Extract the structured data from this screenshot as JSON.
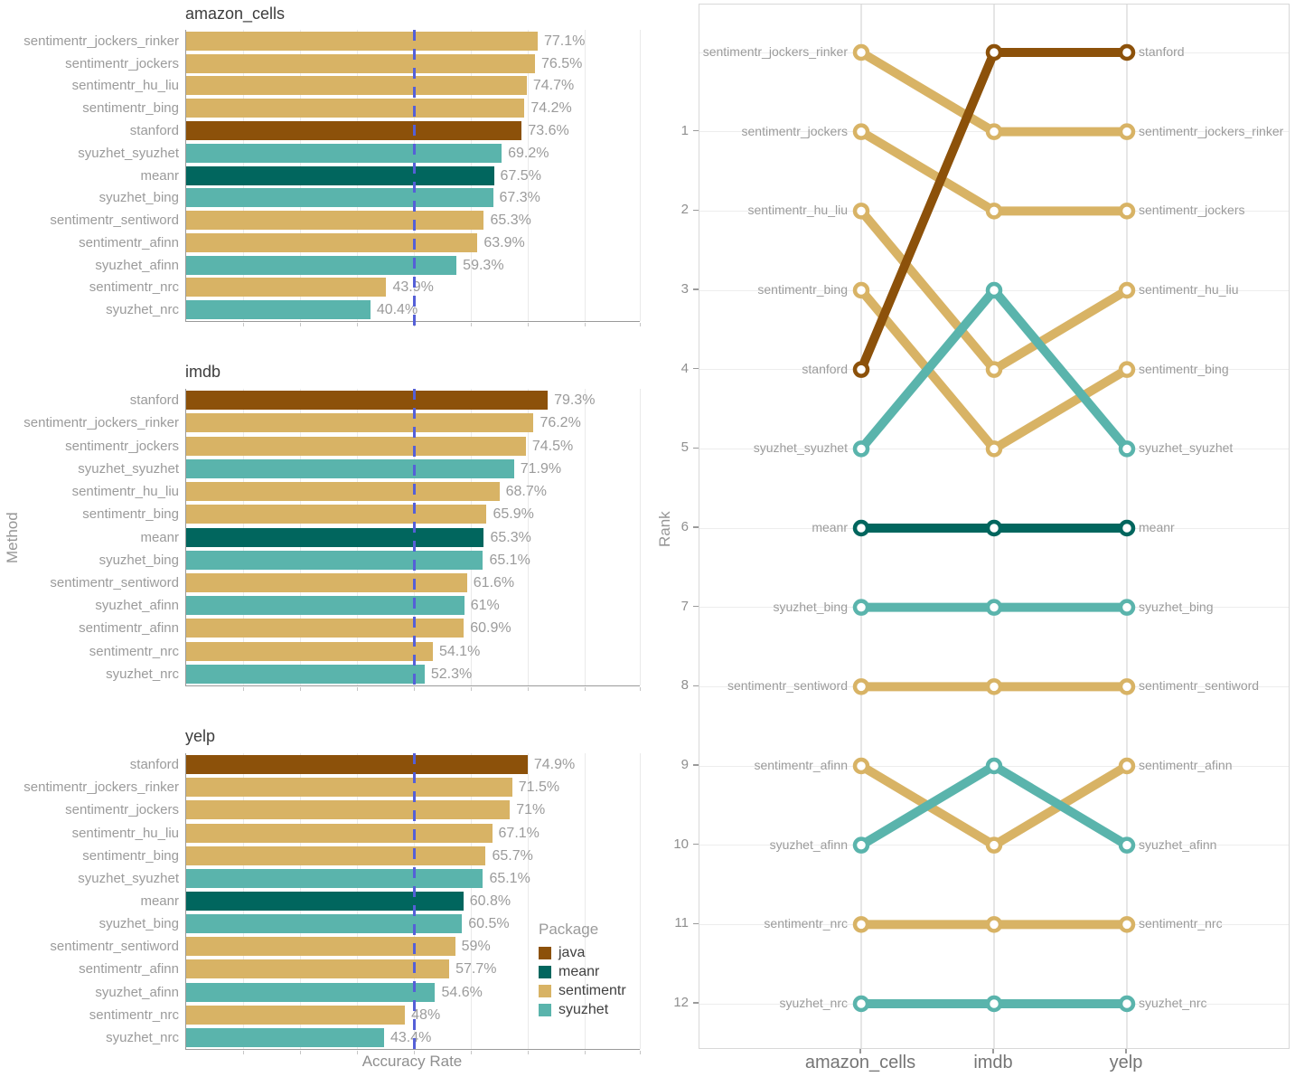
{
  "palette": {
    "java": "#8C510A",
    "meanr": "#01665E",
    "sentimentr": "#D8B365",
    "syuzhet": "#5AB4AC"
  },
  "axes": {
    "method_axis_title": "Method",
    "accuracy_axis_title": "Accuracy Rate",
    "rank_axis_title": "Rank"
  },
  "legend": {
    "title": "Package",
    "items": [
      {
        "label": "java",
        "package": "java"
      },
      {
        "label": "meanr",
        "package": "meanr"
      },
      {
        "label": "sentimentr",
        "package": "sentimentr"
      },
      {
        "label": "syuzhet",
        "package": "syuzhet"
      }
    ]
  },
  "reference_line": {
    "value": 50,
    "style": "dashed",
    "color": "#5560D7"
  },
  "chart_data": [
    {
      "type": "bar",
      "title": "amazon_cells",
      "orientation": "horizontal",
      "xlabel": "Accuracy Rate",
      "ylabel": "Method",
      "xlim": [
        0,
        99.5
      ],
      "gridline_step": 12.5,
      "bars": [
        {
          "method": "sentimentr_jockers_rinker",
          "package": "sentimentr",
          "value": 77.1,
          "label": "77.1%"
        },
        {
          "method": "sentimentr_jockers",
          "package": "sentimentr",
          "value": 76.5,
          "label": "76.5%"
        },
        {
          "method": "sentimentr_hu_liu",
          "package": "sentimentr",
          "value": 74.7,
          "label": "74.7%"
        },
        {
          "method": "sentimentr_bing",
          "package": "sentimentr",
          "value": 74.2,
          "label": "74.2%"
        },
        {
          "method": "stanford",
          "package": "java",
          "value": 73.6,
          "label": "73.6%"
        },
        {
          "method": "syuzhet_syuzhet",
          "package": "syuzhet",
          "value": 69.2,
          "label": "69.2%"
        },
        {
          "method": "meanr",
          "package": "meanr",
          "value": 67.5,
          "label": "67.5%"
        },
        {
          "method": "syuzhet_bing",
          "package": "syuzhet",
          "value": 67.3,
          "label": "67.3%"
        },
        {
          "method": "sentimentr_sentiword",
          "package": "sentimentr",
          "value": 65.3,
          "label": "65.3%"
        },
        {
          "method": "sentimentr_afinn",
          "package": "sentimentr",
          "value": 63.9,
          "label": "63.9%"
        },
        {
          "method": "syuzhet_afinn",
          "package": "syuzhet",
          "value": 59.3,
          "label": "59.3%"
        },
        {
          "method": "sentimentr_nrc",
          "package": "sentimentr",
          "value": 43.9,
          "label": "43.9%"
        },
        {
          "method": "syuzhet_nrc",
          "package": "syuzhet",
          "value": 40.4,
          "label": "40.4%"
        }
      ]
    },
    {
      "type": "bar",
      "title": "imdb",
      "orientation": "horizontal",
      "xlabel": "Accuracy Rate",
      "ylabel": "Method",
      "xlim": [
        0,
        99.5
      ],
      "gridline_step": 12.5,
      "bars": [
        {
          "method": "stanford",
          "package": "java",
          "value": 79.3,
          "label": "79.3%"
        },
        {
          "method": "sentimentr_jockers_rinker",
          "package": "sentimentr",
          "value": 76.2,
          "label": "76.2%"
        },
        {
          "method": "sentimentr_jockers",
          "package": "sentimentr",
          "value": 74.5,
          "label": "74.5%"
        },
        {
          "method": "syuzhet_syuzhet",
          "package": "syuzhet",
          "value": 71.9,
          "label": "71.9%"
        },
        {
          "method": "sentimentr_hu_liu",
          "package": "sentimentr",
          "value": 68.7,
          "label": "68.7%"
        },
        {
          "method": "sentimentr_bing",
          "package": "sentimentr",
          "value": 65.9,
          "label": "65.9%"
        },
        {
          "method": "meanr",
          "package": "meanr",
          "value": 65.3,
          "label": "65.3%"
        },
        {
          "method": "syuzhet_bing",
          "package": "syuzhet",
          "value": 65.1,
          "label": "65.1%"
        },
        {
          "method": "sentimentr_sentiword",
          "package": "sentimentr",
          "value": 61.6,
          "label": "61.6%"
        },
        {
          "method": "syuzhet_afinn",
          "package": "syuzhet",
          "value": 61,
          "label": "61%"
        },
        {
          "method": "sentimentr_afinn",
          "package": "sentimentr",
          "value": 60.9,
          "label": "60.9%"
        },
        {
          "method": "sentimentr_nrc",
          "package": "sentimentr",
          "value": 54.1,
          "label": "54.1%"
        },
        {
          "method": "syuzhet_nrc",
          "package": "syuzhet",
          "value": 52.3,
          "label": "52.3%"
        }
      ]
    },
    {
      "type": "bar",
      "title": "yelp",
      "orientation": "horizontal",
      "xlabel": "Accuracy Rate",
      "ylabel": "Method",
      "xlim": [
        0,
        99.5
      ],
      "gridline_step": 12.5,
      "bars": [
        {
          "method": "stanford",
          "package": "java",
          "value": 74.9,
          "label": "74.9%"
        },
        {
          "method": "sentimentr_jockers_rinker",
          "package": "sentimentr",
          "value": 71.5,
          "label": "71.5%"
        },
        {
          "method": "sentimentr_jockers",
          "package": "sentimentr",
          "value": 71,
          "label": "71%"
        },
        {
          "method": "sentimentr_hu_liu",
          "package": "sentimentr",
          "value": 67.1,
          "label": "67.1%"
        },
        {
          "method": "sentimentr_bing",
          "package": "sentimentr",
          "value": 65.7,
          "label": "65.7%"
        },
        {
          "method": "syuzhet_syuzhet",
          "package": "syuzhet",
          "value": 65.1,
          "label": "65.1%"
        },
        {
          "method": "meanr",
          "package": "meanr",
          "value": 60.8,
          "label": "60.8%"
        },
        {
          "method": "syuzhet_bing",
          "package": "syuzhet",
          "value": 60.5,
          "label": "60.5%"
        },
        {
          "method": "sentimentr_sentiword",
          "package": "sentimentr",
          "value": 59,
          "label": "59%"
        },
        {
          "method": "sentimentr_afinn",
          "package": "sentimentr",
          "value": 57.7,
          "label": "57.7%"
        },
        {
          "method": "syuzhet_afinn",
          "package": "syuzhet",
          "value": 54.6,
          "label": "54.6%"
        },
        {
          "method": "sentimentr_nrc",
          "package": "sentimentr",
          "value": 48,
          "label": "48%"
        },
        {
          "method": "syuzhet_nrc",
          "package": "syuzhet",
          "value": 43.4,
          "label": "43.4%"
        }
      ]
    },
    {
      "type": "line",
      "subtype": "bump",
      "ylabel": "Rank",
      "x_categories": [
        "amazon_cells",
        "imdb",
        "yelp"
      ],
      "y_tick_labels": [
        "1",
        "2",
        "3",
        "4",
        "5",
        "6",
        "7",
        "8",
        "9",
        "10",
        "11",
        "12"
      ],
      "top_row_unlabeled": true,
      "series": [
        {
          "name": "meanr",
          "package": "meanr",
          "row_positions": [
            6,
            6,
            6
          ]
        },
        {
          "name": "sentimentr_afinn",
          "package": "sentimentr",
          "row_positions": [
            9,
            10,
            9
          ]
        },
        {
          "name": "sentimentr_bing",
          "package": "sentimentr",
          "row_positions": [
            3,
            5,
            4
          ]
        },
        {
          "name": "sentimentr_hu_liu",
          "package": "sentimentr",
          "row_positions": [
            2,
            4,
            3
          ]
        },
        {
          "name": "sentimentr_jockers",
          "package": "sentimentr",
          "row_positions": [
            1,
            2,
            2
          ]
        },
        {
          "name": "sentimentr_jockers_rinker",
          "package": "sentimentr",
          "row_positions": [
            0,
            1,
            1
          ]
        },
        {
          "name": "sentimentr_nrc",
          "package": "sentimentr",
          "row_positions": [
            11,
            11,
            11
          ]
        },
        {
          "name": "sentimentr_sentiword",
          "package": "sentimentr",
          "row_positions": [
            8,
            8,
            8
          ]
        },
        {
          "name": "stanford",
          "package": "java",
          "row_positions": [
            4,
            0,
            0
          ]
        },
        {
          "name": "syuzhet_afinn",
          "package": "syuzhet",
          "row_positions": [
            10,
            9,
            10
          ]
        },
        {
          "name": "syuzhet_bing",
          "package": "syuzhet",
          "row_positions": [
            7,
            7,
            7
          ]
        },
        {
          "name": "syuzhet_nrc",
          "package": "syuzhet",
          "row_positions": [
            12,
            12,
            12
          ]
        },
        {
          "name": "syuzhet_syuzhet",
          "package": "syuzhet",
          "row_positions": [
            5,
            3,
            5
          ]
        }
      ]
    }
  ]
}
